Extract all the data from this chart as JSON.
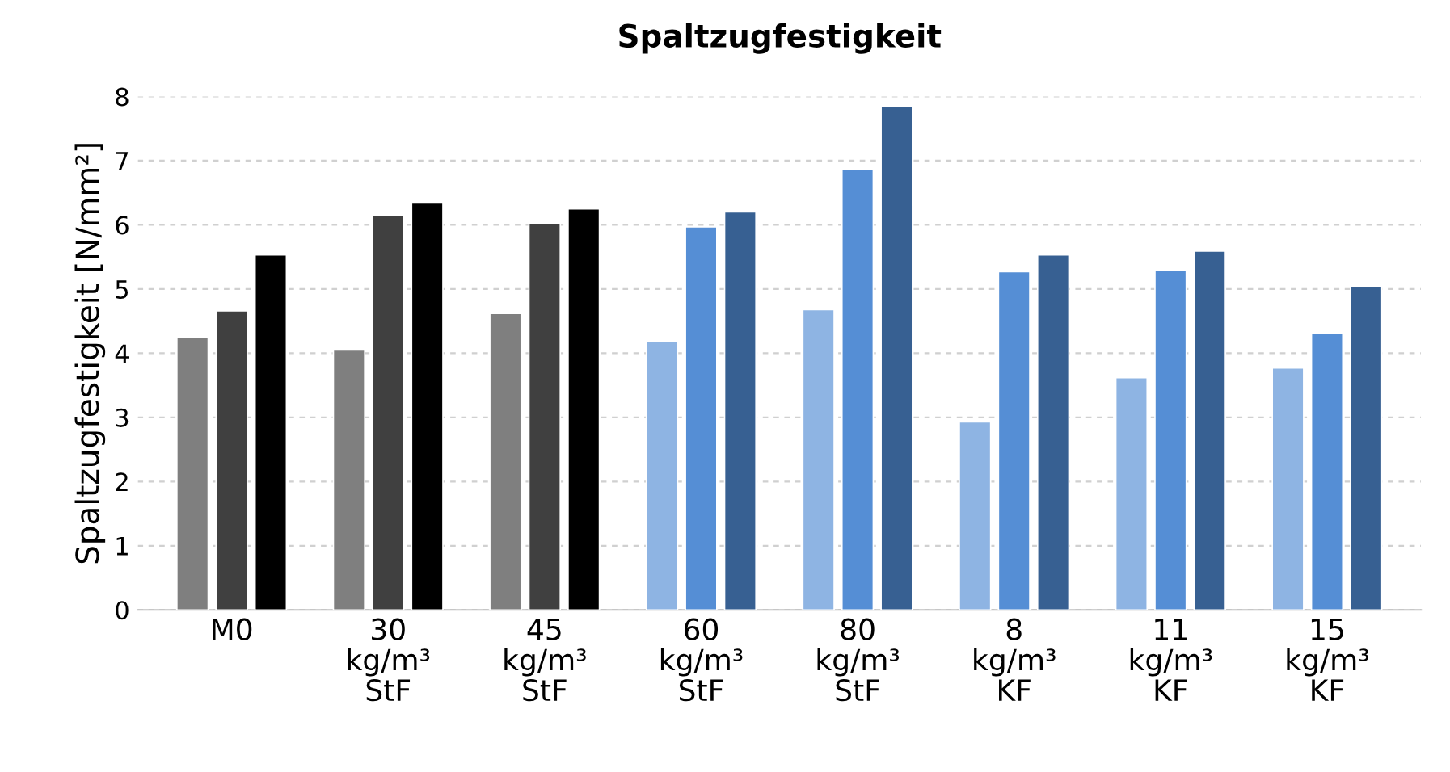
{
  "chart_data": {
    "type": "bar",
    "title": "Spaltzugfestigkeit",
    "ylabel": "Spaltzugfestigkeit [N/mm²]",
    "categories": [
      "M0",
      "30\nkg/m³\nStF",
      "45\nkg/m³\nStF",
      "60\nkg/m³\nStF",
      "80\nkg/m³\nStF",
      "8\nkg/m³\nKF",
      "11\nkg/m³\nKF",
      "15\nkg/m³\nKF"
    ],
    "series": [
      {
        "colors": [
          "#7f7f7f",
          "#7f7f7f",
          "#7f7f7f",
          "#8eb4e3",
          "#8eb4e3",
          "#8eb4e3",
          "#8eb4e3",
          "#8eb4e3"
        ],
        "values": [
          4.25,
          4.05,
          4.62,
          4.18,
          4.68,
          2.93,
          3.62,
          3.77
        ]
      },
      {
        "colors": [
          "#404040",
          "#404040",
          "#404040",
          "#558ed5",
          "#558ed5",
          "#558ed5",
          "#558ed5",
          "#558ed5"
        ],
        "values": [
          4.66,
          6.15,
          6.03,
          5.97,
          6.86,
          5.27,
          5.29,
          4.31
        ]
      },
      {
        "colors": [
          "#000000",
          "#000000",
          "#000000",
          "#376092",
          "#376092",
          "#376092",
          "#376092",
          "#376092"
        ],
        "values": [
          5.53,
          6.34,
          6.25,
          6.2,
          7.85,
          5.53,
          5.59,
          5.04
        ]
      }
    ],
    "ylim": [
      0,
      8
    ],
    "yticks": [
      0,
      1,
      2,
      3,
      4,
      5,
      6,
      7,
      8
    ],
    "grid": "y",
    "legend": false
  }
}
